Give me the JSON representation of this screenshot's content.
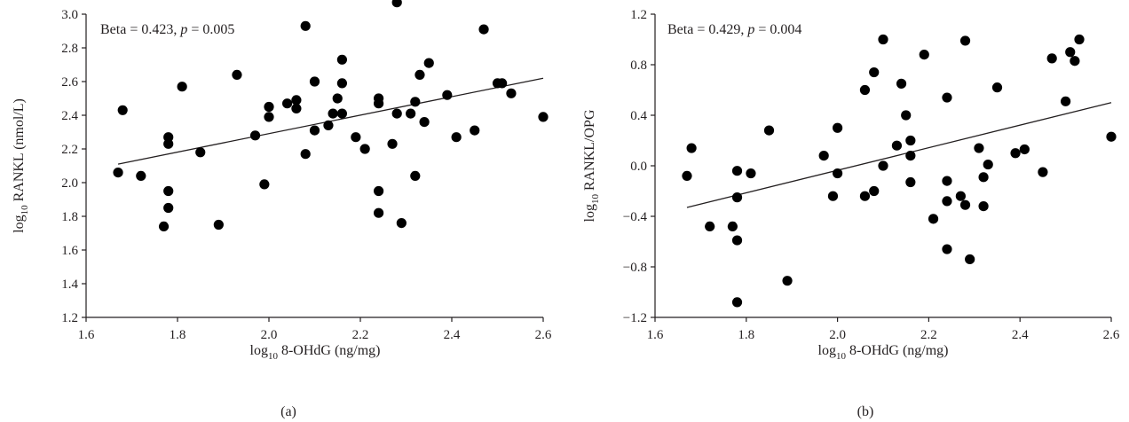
{
  "chart_data": [
    {
      "type": "scatter",
      "panel_label": "(a)",
      "annotation": {
        "beta_label": "Beta = 0.423, ",
        "p_symbol": "p",
        "p_rest": " = 0.005"
      },
      "xlabel": {
        "prefix": "log",
        "sub": "10",
        "text": " 8-OHdG (ng/mg)"
      },
      "ylabel": {
        "prefix": "log",
        "sub": "10",
        "text": " RANKL (nmol/L)"
      },
      "xlim": [
        1.6,
        2.6
      ],
      "ylim": [
        1.2,
        3.0
      ],
      "xticks": [
        "1.6",
        "1.8",
        "2.0",
        "2.2",
        "2.4",
        "2.6"
      ],
      "yticks": [
        "1.2",
        "1.4",
        "1.6",
        "1.8",
        "2.0",
        "2.2",
        "2.4",
        "2.6",
        "2.8",
        "3.0"
      ],
      "regression": {
        "x": [
          1.67,
          2.6
        ],
        "y": [
          2.11,
          2.62
        ]
      },
      "points": [
        [
          1.67,
          2.06
        ],
        [
          1.68,
          2.43
        ],
        [
          1.72,
          2.04
        ],
        [
          1.77,
          1.74
        ],
        [
          1.78,
          2.27
        ],
        [
          1.78,
          2.23
        ],
        [
          1.78,
          1.95
        ],
        [
          1.78,
          1.85
        ],
        [
          1.81,
          2.57
        ],
        [
          1.85,
          2.18
        ],
        [
          1.89,
          1.75
        ],
        [
          1.93,
          2.64
        ],
        [
          1.97,
          2.28
        ],
        [
          1.99,
          1.99
        ],
        [
          2.0,
          2.45
        ],
        [
          2.0,
          2.39
        ],
        [
          2.04,
          2.47
        ],
        [
          2.06,
          2.49
        ],
        [
          2.06,
          2.44
        ],
        [
          2.08,
          2.93
        ],
        [
          2.08,
          2.17
        ],
        [
          2.1,
          2.6
        ],
        [
          2.1,
          2.31
        ],
        [
          2.13,
          2.34
        ],
        [
          2.14,
          2.41
        ],
        [
          2.15,
          2.5
        ],
        [
          2.16,
          2.73
        ],
        [
          2.16,
          2.59
        ],
        [
          2.16,
          2.41
        ],
        [
          2.19,
          2.27
        ],
        [
          2.21,
          2.2
        ],
        [
          2.24,
          2.5
        ],
        [
          2.24,
          2.47
        ],
        [
          2.24,
          1.95
        ],
        [
          2.24,
          1.82
        ],
        [
          2.27,
          2.23
        ],
        [
          2.28,
          3.07
        ],
        [
          2.28,
          2.41
        ],
        [
          2.29,
          1.76
        ],
        [
          2.31,
          2.41
        ],
        [
          2.32,
          2.48
        ],
        [
          2.32,
          2.04
        ],
        [
          2.33,
          2.64
        ],
        [
          2.34,
          2.36
        ],
        [
          2.35,
          2.71
        ],
        [
          2.39,
          2.52
        ],
        [
          2.41,
          2.27
        ],
        [
          2.45,
          2.31
        ],
        [
          2.47,
          2.91
        ],
        [
          2.5,
          2.59
        ],
        [
          2.51,
          2.59
        ],
        [
          2.53,
          2.53
        ],
        [
          2.6,
          2.39
        ]
      ]
    },
    {
      "type": "scatter",
      "panel_label": "(b)",
      "annotation": {
        "beta_label": "Beta = 0.429, ",
        "p_symbol": "p",
        "p_rest": " = 0.004"
      },
      "xlabel": {
        "prefix": "log",
        "sub": "10",
        "text": " 8-OHdG (ng/mg)"
      },
      "ylabel": {
        "prefix": "log",
        "sub": "10",
        "text": " RANKL/OPG"
      },
      "xlim": [
        1.6,
        2.6
      ],
      "ylim": [
        -1.2,
        1.2
      ],
      "xticks": [
        "1.6",
        "1.8",
        "2.0",
        "2.2",
        "2.4",
        "2.6"
      ],
      "yticks": [
        "−1.2",
        "−0.8",
        "−0.4",
        "0.0",
        "0.4",
        "0.8",
        "1.2"
      ],
      "regression": {
        "x": [
          1.67,
          2.6
        ],
        "y": [
          -0.33,
          0.5
        ]
      },
      "points": [
        [
          1.67,
          -0.08
        ],
        [
          1.68,
          0.14
        ],
        [
          1.72,
          -0.48
        ],
        [
          1.77,
          -0.48
        ],
        [
          1.78,
          -0.04
        ],
        [
          1.78,
          -0.25
        ],
        [
          1.78,
          -0.59
        ],
        [
          1.78,
          -1.08
        ],
        [
          1.81,
          -0.06
        ],
        [
          1.85,
          0.28
        ],
        [
          1.89,
          -0.91
        ],
        [
          1.97,
          0.08
        ],
        [
          1.99,
          -0.24
        ],
        [
          2.0,
          0.3
        ],
        [
          2.0,
          -0.06
        ],
        [
          2.06,
          0.6
        ],
        [
          2.06,
          -0.24
        ],
        [
          2.08,
          0.74
        ],
        [
          2.08,
          -0.2
        ],
        [
          2.1,
          1.0
        ],
        [
          2.1,
          0.0
        ],
        [
          2.13,
          0.16
        ],
        [
          2.14,
          0.65
        ],
        [
          2.15,
          0.4
        ],
        [
          2.16,
          0.2
        ],
        [
          2.16,
          0.08
        ],
        [
          2.16,
          -0.13
        ],
        [
          2.19,
          0.88
        ],
        [
          2.21,
          -0.42
        ],
        [
          2.24,
          0.54
        ],
        [
          2.24,
          -0.12
        ],
        [
          2.24,
          -0.28
        ],
        [
          2.24,
          -0.66
        ],
        [
          2.27,
          -0.24
        ],
        [
          2.28,
          0.99
        ],
        [
          2.28,
          -0.31
        ],
        [
          2.29,
          -0.74
        ],
        [
          2.31,
          0.14
        ],
        [
          2.32,
          -0.09
        ],
        [
          2.32,
          -0.32
        ],
        [
          2.33,
          0.01
        ],
        [
          2.35,
          0.62
        ],
        [
          2.39,
          0.1
        ],
        [
          2.41,
          0.13
        ],
        [
          2.45,
          -0.05
        ],
        [
          2.47,
          0.85
        ],
        [
          2.5,
          0.51
        ],
        [
          2.51,
          0.9
        ],
        [
          2.52,
          0.83
        ],
        [
          2.53,
          1.0
        ],
        [
          2.6,
          0.23
        ]
      ]
    }
  ]
}
